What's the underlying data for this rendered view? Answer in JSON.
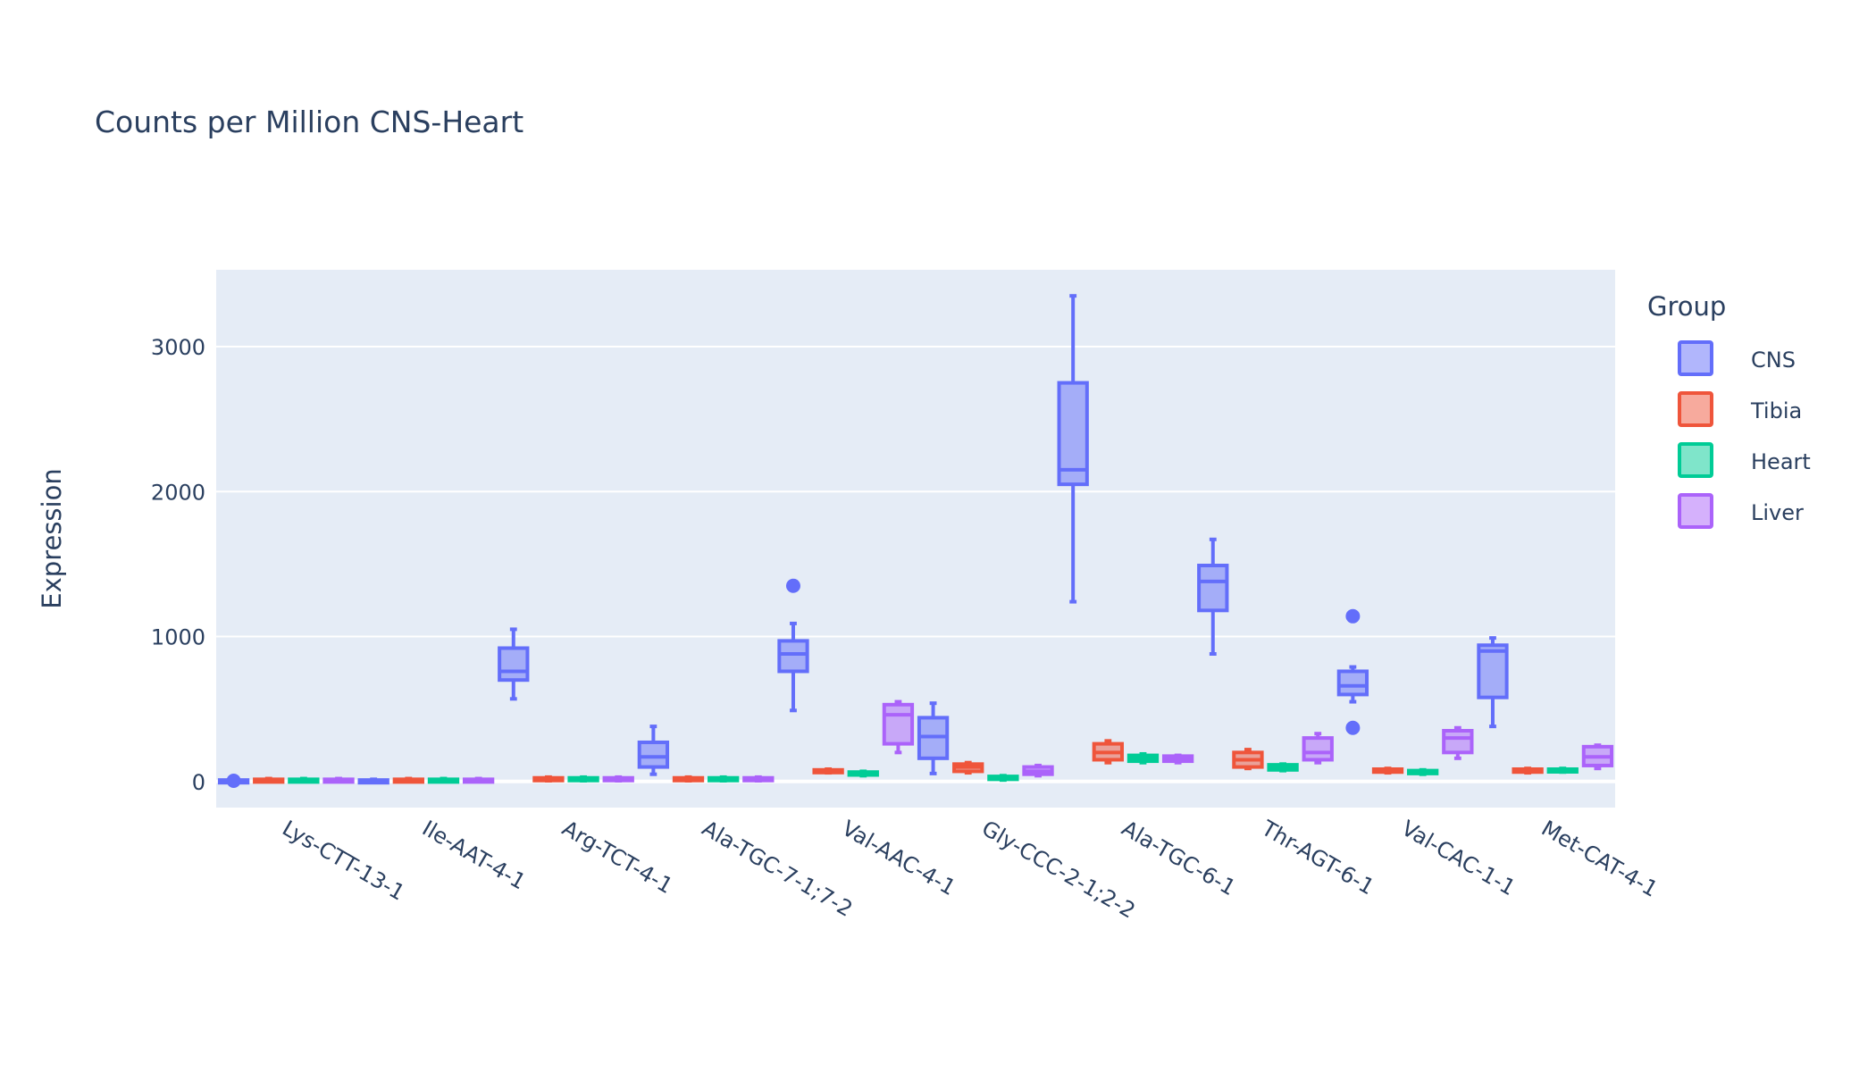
{
  "chart_data": {
    "type": "box",
    "title": "Counts per Million CNS-Heart",
    "xlabel": "",
    "ylabel": "Expression",
    "ylim": [
      -180,
      3530
    ],
    "yticks": [
      0,
      1000,
      2000,
      3000
    ],
    "grid": true,
    "legend_title": "Group",
    "legend_position": "right",
    "categories": [
      "Lys-CTT-13-1",
      "Ile-AAT-4-1",
      "Arg-TCT-4-1",
      "Ala-TGC-7-1;7-2",
      "Val-AAC-4-1",
      "Gly-CCC-2-1;2-2",
      "Ala-TGC-6-1",
      "Thr-AGT-6-1",
      "Val-CAC-1-1",
      "Met-CAT-4-1"
    ],
    "series": [
      {
        "name": "CNS",
        "color": "#636efa",
        "boxes": [
          {
            "min": 0,
            "q1": 0,
            "median": 5,
            "q3": 10,
            "max": 15,
            "outliers": [
              5
            ]
          },
          {
            "min": 0,
            "q1": 0,
            "median": 5,
            "q3": 10,
            "max": 15,
            "outliers": []
          },
          {
            "min": 570,
            "q1": 700,
            "median": 760,
            "q3": 920,
            "max": 1050,
            "outliers": []
          },
          {
            "min": 50,
            "q1": 100,
            "median": 170,
            "q3": 270,
            "max": 380,
            "outliers": []
          },
          {
            "min": 490,
            "q1": 760,
            "median": 880,
            "q3": 970,
            "max": 1090,
            "outliers": [
              1350
            ]
          },
          {
            "min": 55,
            "q1": 160,
            "median": 310,
            "q3": 440,
            "max": 540,
            "outliers": []
          },
          {
            "min": 1240,
            "q1": 2050,
            "median": 2150,
            "q3": 2750,
            "max": 3350,
            "outliers": []
          },
          {
            "min": 880,
            "q1": 1180,
            "median": 1380,
            "q3": 1490,
            "max": 1670,
            "outliers": []
          },
          {
            "min": 550,
            "q1": 600,
            "median": 660,
            "q3": 760,
            "max": 790,
            "outliers": [
              1140,
              370
            ]
          },
          {
            "min": 380,
            "q1": 580,
            "median": 900,
            "q3": 940,
            "max": 990,
            "outliers": []
          }
        ]
      },
      {
        "name": "Tibia",
        "color": "#EF553B",
        "boxes": [
          {
            "min": 0,
            "q1": 0,
            "median": 5,
            "q3": 15,
            "max": 20,
            "outliers": []
          },
          {
            "min": 0,
            "q1": 0,
            "median": 5,
            "q3": 15,
            "max": 20,
            "outliers": []
          },
          {
            "min": 5,
            "q1": 10,
            "median": 15,
            "q3": 25,
            "max": 30,
            "outliers": []
          },
          {
            "min": 5,
            "q1": 10,
            "median": 15,
            "q3": 25,
            "max": 30,
            "outliers": []
          },
          {
            "min": 60,
            "q1": 65,
            "median": 70,
            "q3": 80,
            "max": 85,
            "outliers": []
          },
          {
            "min": 60,
            "q1": 70,
            "median": 100,
            "q3": 120,
            "max": 130,
            "outliers": []
          },
          {
            "min": 130,
            "q1": 150,
            "median": 200,
            "q3": 260,
            "max": 280,
            "outliers": []
          },
          {
            "min": 90,
            "q1": 100,
            "median": 150,
            "q3": 200,
            "max": 220,
            "outliers": []
          },
          {
            "min": 60,
            "q1": 65,
            "median": 75,
            "q3": 85,
            "max": 90,
            "outliers": []
          },
          {
            "min": 60,
            "q1": 65,
            "median": 75,
            "q3": 85,
            "max": 90,
            "outliers": []
          }
        ]
      },
      {
        "name": "Heart",
        "color": "#00cc96",
        "boxes": [
          {
            "min": 0,
            "q1": 0,
            "median": 5,
            "q3": 15,
            "max": 20,
            "outliers": []
          },
          {
            "min": 0,
            "q1": 0,
            "median": 5,
            "q3": 15,
            "max": 20,
            "outliers": []
          },
          {
            "min": 5,
            "q1": 10,
            "median": 15,
            "q3": 25,
            "max": 30,
            "outliers": []
          },
          {
            "min": 5,
            "q1": 10,
            "median": 15,
            "q3": 25,
            "max": 30,
            "outliers": []
          },
          {
            "min": 40,
            "q1": 45,
            "median": 55,
            "q3": 65,
            "max": 70,
            "outliers": []
          },
          {
            "min": 10,
            "q1": 15,
            "median": 25,
            "q3": 35,
            "max": 40,
            "outliers": []
          },
          {
            "min": 130,
            "q1": 140,
            "median": 160,
            "q3": 180,
            "max": 190,
            "outliers": []
          },
          {
            "min": 75,
            "q1": 80,
            "median": 100,
            "q3": 115,
            "max": 120,
            "outliers": []
          },
          {
            "min": 50,
            "q1": 55,
            "median": 65,
            "q3": 75,
            "max": 80,
            "outliers": []
          },
          {
            "min": 65,
            "q1": 70,
            "median": 78,
            "q3": 85,
            "max": 90,
            "outliers": []
          }
        ]
      },
      {
        "name": "Liver",
        "color": "#ab63fa",
        "boxes": [
          {
            "min": 0,
            "q1": 0,
            "median": 5,
            "q3": 15,
            "max": 20,
            "outliers": []
          },
          {
            "min": 0,
            "q1": 0,
            "median": 5,
            "q3": 15,
            "max": 20,
            "outliers": []
          },
          {
            "min": 5,
            "q1": 10,
            "median": 15,
            "q3": 25,
            "max": 30,
            "outliers": []
          },
          {
            "min": 5,
            "q1": 10,
            "median": 15,
            "q3": 25,
            "max": 30,
            "outliers": []
          },
          {
            "min": 200,
            "q1": 260,
            "median": 460,
            "q3": 530,
            "max": 550,
            "outliers": []
          },
          {
            "min": 40,
            "q1": 50,
            "median": 70,
            "q3": 100,
            "max": 110,
            "outliers": []
          },
          {
            "min": 130,
            "q1": 140,
            "median": 160,
            "q3": 175,
            "max": 180,
            "outliers": []
          },
          {
            "min": 130,
            "q1": 150,
            "median": 200,
            "q3": 300,
            "max": 330,
            "outliers": []
          },
          {
            "min": 160,
            "q1": 200,
            "median": 300,
            "q3": 350,
            "max": 370,
            "outliers": []
          },
          {
            "min": 90,
            "q1": 110,
            "median": 170,
            "q3": 240,
            "max": 250,
            "outliers": []
          }
        ]
      }
    ]
  }
}
